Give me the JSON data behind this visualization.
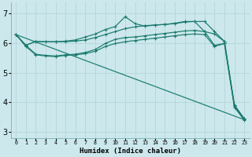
{
  "background_color": "#cce8ec",
  "grid_color": "#b8d8dc",
  "line_color": "#1a7a6e",
  "xlabel": "Humidex (Indice chaleur)",
  "ylim": [
    2.8,
    7.35
  ],
  "xlim": [
    -0.5,
    23.5
  ],
  "yticks": [
    3,
    4,
    5,
    6,
    7
  ],
  "xticks": [
    0,
    1,
    2,
    3,
    4,
    5,
    6,
    7,
    8,
    9,
    10,
    11,
    12,
    13,
    14,
    15,
    16,
    17,
    18,
    19,
    20,
    21,
    22,
    23
  ],
  "series": [
    {
      "x": [
        0,
        1,
        2,
        3,
        4,
        5,
        6,
        7,
        8,
        9,
        10,
        11,
        12,
        13,
        14,
        15,
        16,
        17,
        18,
        19,
        20,
        21,
        22,
        23
      ],
      "y": [
        6.28,
        5.92,
        6.05,
        6.04,
        6.04,
        6.04,
        6.06,
        6.1,
        6.18,
        6.28,
        6.38,
        6.48,
        6.54,
        6.58,
        6.6,
        6.62,
        6.65,
        6.7,
        6.72,
        6.72,
        6.38,
        6.05,
        3.92,
        3.45
      ],
      "marker": true
    },
    {
      "x": [
        0,
        1,
        2,
        3,
        4,
        5,
        6,
        7,
        8,
        9,
        10,
        11,
        12,
        13,
        14,
        15,
        16,
        17,
        18,
        19,
        20,
        21,
        22,
        23
      ],
      "y": [
        6.28,
        5.92,
        6.05,
        6.04,
        6.04,
        6.06,
        6.1,
        6.2,
        6.3,
        6.45,
        6.55,
        6.88,
        6.65,
        6.56,
        6.6,
        6.62,
        6.66,
        6.72,
        6.72,
        6.38,
        6.3,
        6.05,
        3.9,
        3.45
      ],
      "marker": true
    },
    {
      "x": [
        0,
        1,
        2,
        3,
        4,
        5,
        6,
        7,
        8,
        9,
        10,
        11,
        12,
        13,
        14,
        15,
        16,
        17,
        18,
        19,
        20,
        21,
        22,
        23
      ],
      "y": [
        6.28,
        5.92,
        5.62,
        5.58,
        5.56,
        5.6,
        5.62,
        5.68,
        5.78,
        5.98,
        6.12,
        6.18,
        6.2,
        6.24,
        6.28,
        6.32,
        6.36,
        6.4,
        6.42,
        6.38,
        5.92,
        5.98,
        3.88,
        3.42
      ],
      "marker": true
    },
    {
      "x": [
        0,
        1,
        2,
        3,
        4,
        5,
        6,
        7,
        8,
        9,
        10,
        11,
        12,
        13,
        14,
        15,
        16,
        17,
        18,
        19,
        20,
        21,
        22,
        23
      ],
      "y": [
        6.28,
        5.88,
        5.6,
        5.56,
        5.54,
        5.58,
        5.6,
        5.64,
        5.72,
        5.88,
        5.98,
        6.04,
        6.08,
        6.12,
        6.16,
        6.2,
        6.24,
        6.28,
        6.3,
        6.28,
        5.88,
        5.98,
        3.84,
        3.4
      ],
      "marker": true
    },
    {
      "x": [
        0,
        23
      ],
      "y": [
        6.28,
        3.42
      ],
      "marker": false,
      "straight": true
    }
  ]
}
